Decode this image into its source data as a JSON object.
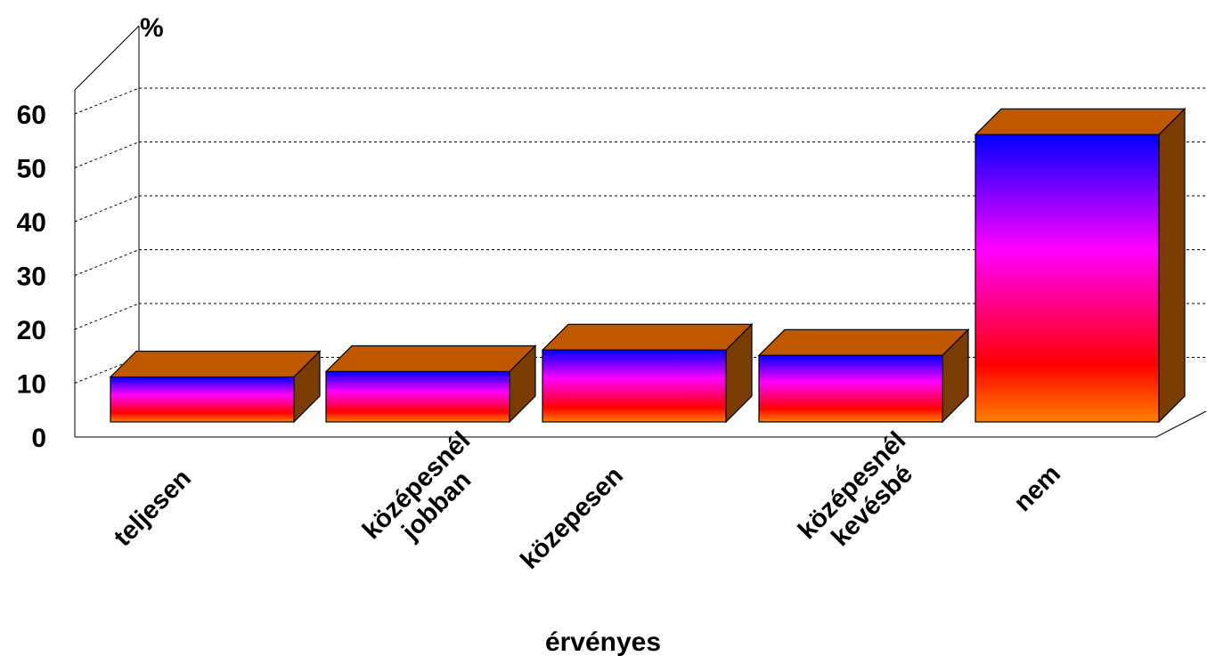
{
  "chart_data": {
    "type": "bar",
    "style": "3d",
    "categories": [
      [
        "teljesen"
      ],
      [
        "középesnél",
        "jobban"
      ],
      [
        "közepesen"
      ],
      [
        "középesnél",
        "kevésbé"
      ],
      [
        "nem"
      ]
    ],
    "values": [
      9,
      10,
      14,
      13,
      54
    ],
    "ylabel": "%",
    "xlabel": "érvényes",
    "ylim": [
      0,
      60
    ],
    "yticks": [
      0,
      10,
      20,
      30,
      40,
      50,
      60
    ],
    "grid": true,
    "colors": {
      "front_gradient": [
        "#0000ff",
        "#ff00ff",
        "#ff0000",
        "#ff8000"
      ],
      "top": "#c05800",
      "side": "#7a3c00",
      "grid": "#000000"
    }
  }
}
